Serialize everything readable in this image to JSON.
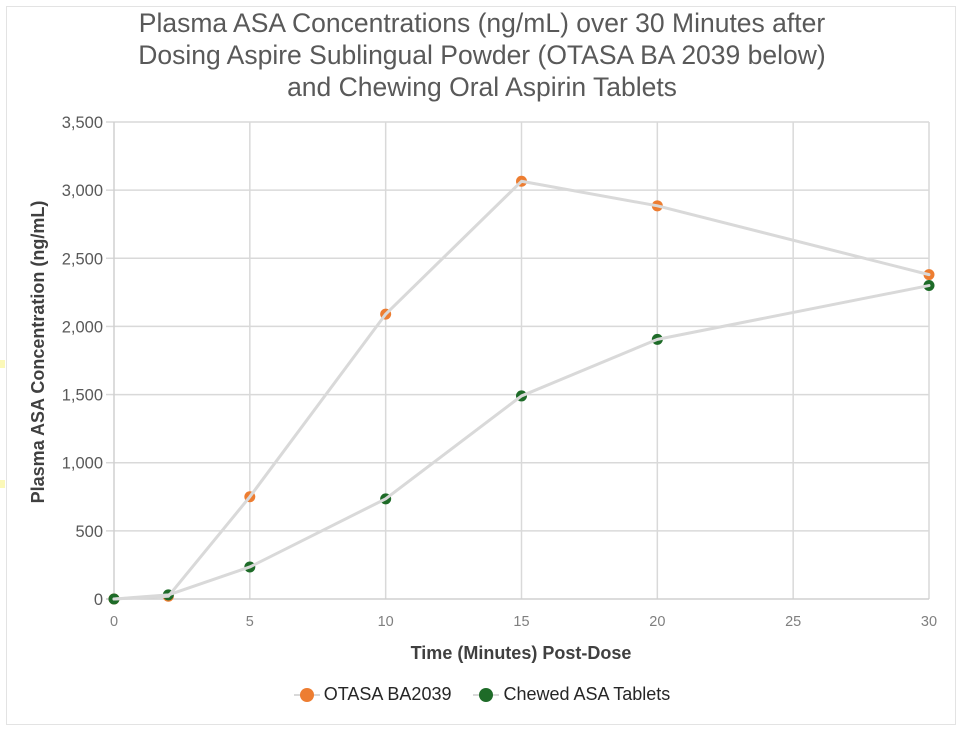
{
  "chart_data": {
    "type": "line",
    "title_lines": [
      "Plasma ASA Concentrations (ng/mL) over 30 Minutes after",
      "Dosing Aspire Sublingual Powder (OTASA BA 2039 below)",
      "and Chewing Oral Aspirin Tablets"
    ],
    "xlabel": "Time (Minutes) Post-Dose",
    "ylabel": "Plasma ASA Concentration (ng/mL)",
    "xlim": [
      0,
      30
    ],
    "ylim": [
      0,
      3500
    ],
    "x_ticks": [
      0,
      5,
      10,
      15,
      20,
      25,
      30
    ],
    "x_tick_labels": [
      "0",
      "5",
      "10",
      "15",
      "20",
      "25",
      "30"
    ],
    "y_ticks": [
      0,
      500,
      1000,
      1500,
      2000,
      2500,
      3000,
      3500
    ],
    "y_tick_labels": [
      "0",
      "500",
      "1,000",
      "1,500",
      "2,000",
      "2,500",
      "3,000",
      "3,500"
    ],
    "grid": true,
    "legend_position": "bottom",
    "series": [
      {
        "name": "OTASA BA2039",
        "color": "#ED7D31",
        "line_color": "#D9D9D9",
        "x": [
          0,
          2,
          5,
          10,
          15,
          20,
          30
        ],
        "values": [
          0,
          20,
          750,
          2090,
          3065,
          2885,
          2380
        ]
      },
      {
        "name": "Chewed ASA Tablets",
        "color": "#1E6B28",
        "line_color": "#D9D9D9",
        "x": [
          0,
          2,
          5,
          10,
          15,
          20,
          30
        ],
        "values": [
          0,
          30,
          235,
          735,
          1490,
          1905,
          2300
        ]
      }
    ]
  }
}
